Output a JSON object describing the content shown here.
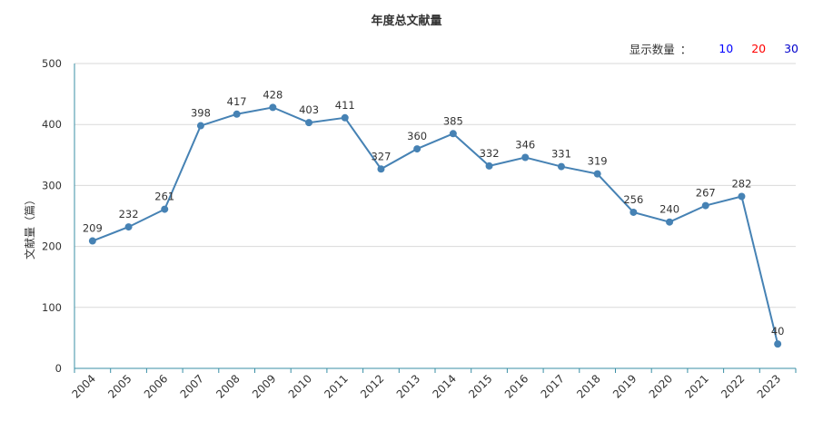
{
  "page": {
    "title": "年度总文献量",
    "count_selector": {
      "label": "显示数量",
      "colon": "：",
      "options": [
        {
          "label": "10",
          "color": "#0000ff"
        },
        {
          "label": "20",
          "color": "#ff0000"
        },
        {
          "label": "30",
          "color": "#0000cc"
        }
      ]
    }
  },
  "chart_data": {
    "type": "line",
    "title": "年度总文献量",
    "xlabel": "",
    "ylabel": "文献量（篇）",
    "ylim": [
      0,
      500
    ],
    "yticks": [
      0,
      100,
      200,
      300,
      400,
      500
    ],
    "grid": true,
    "color": "#4682b4",
    "categories": [
      "2004",
      "2005",
      "2006",
      "2007",
      "2008",
      "2009",
      "2010",
      "2011",
      "2012",
      "2013",
      "2014",
      "2015",
      "2016",
      "2017",
      "2018",
      "2019",
      "2020",
      "2021",
      "2022",
      "2023"
    ],
    "values": [
      209,
      232,
      261,
      398,
      417,
      428,
      403,
      411,
      327,
      360,
      385,
      332,
      346,
      331,
      319,
      256,
      240,
      267,
      282,
      40
    ]
  }
}
